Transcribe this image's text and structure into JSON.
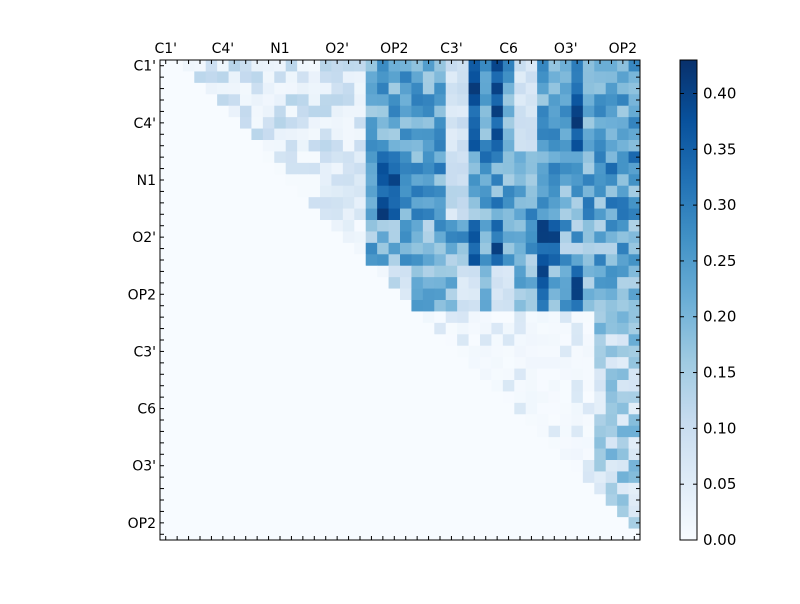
{
  "chart_data": {
    "type": "heatmap",
    "title": "",
    "xlabel": "",
    "ylabel": "",
    "n": 42,
    "x_tick_labels": [
      "C1'",
      "C4'",
      "N1",
      "O2'",
      "OP2",
      "C3'",
      "C6",
      "O3'",
      "OP2"
    ],
    "y_tick_labels": [
      "C1'",
      "C4'",
      "N1",
      "O2'",
      "OP2",
      "C3'",
      "C6",
      "O3'",
      "OP2"
    ],
    "colorbar": {
      "min": 0.0,
      "max": 0.43,
      "ticks": [
        "0.00",
        "0.05",
        "0.10",
        "0.15",
        "0.20",
        "0.25",
        "0.30",
        "0.35",
        "0.40"
      ],
      "colormap": "Blues",
      "low_color": "#f7fbff",
      "high_color": "#08306b"
    },
    "matrix": "upper-triangular pairwise values; all cells below the diagonal are 0.00",
    "regions": [
      {
        "rows": [
          0,
          7
        ],
        "cols": [
          0,
          17
        ],
        "value_range": [
          0.0,
          0.13
        ]
      },
      {
        "rows": [
          0,
          13
        ],
        "cols": [
          18,
          41
        ],
        "value_range": [
          0.1,
          0.43
        ]
      },
      {
        "rows": [
          14,
          21
        ],
        "cols": [
          18,
          41
        ],
        "value_range": [
          0.08,
          0.41
        ]
      },
      {
        "rows": [
          22,
          41
        ],
        "cols": [
          22,
          41
        ],
        "value_range": [
          0.0,
          0.22
        ]
      }
    ]
  }
}
